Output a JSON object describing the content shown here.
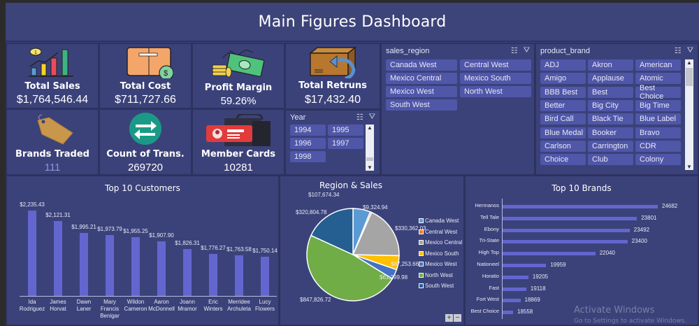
{
  "header": {
    "title": "Main Figures Dashboard"
  },
  "kpis": {
    "total_sales": {
      "label": "Total Sales",
      "value": "$1,764,546.44",
      "icon": "bar-chart-growth-icon"
    },
    "total_cost": {
      "label": "Total Cost",
      "value": "$711,727.66",
      "icon": "box-dollar-icon"
    },
    "profit_margin": {
      "label": "Profit Margin",
      "value": "59.26%",
      "icon": "money-coins-icon"
    },
    "total_returns": {
      "label": "Total Retruns",
      "value": "$17,432.40",
      "icon": "box-return-icon"
    },
    "brands_traded": {
      "label": "Brands Traded",
      "value": "111",
      "icon": "price-tag-icon"
    },
    "count_trans": {
      "label": "Count of Trans.",
      "value": "269720",
      "icon": "exchange-arrows-icon"
    },
    "member_cards": {
      "label": "Member Cards",
      "value": "10281",
      "icon": "id-card-icon"
    }
  },
  "year_slicer": {
    "title": "Year",
    "items": [
      "1994",
      "1995",
      "1996",
      "1997",
      "1998"
    ]
  },
  "region_slicer": {
    "title": "sales_region",
    "items": [
      "Canada West",
      "Central West",
      "Mexico Central",
      "Mexico South",
      "Mexico West",
      "North West",
      "South West"
    ]
  },
  "brand_slicer": {
    "title": "product_brand",
    "items": [
      "ADJ",
      "Akron",
      "American",
      "Amigo",
      "Applause",
      "Atomic",
      "BBB Best",
      "Best",
      "Best Choice",
      "Better",
      "Big City",
      "Big Time",
      "Bird Call",
      "Black Tie",
      "Blue Label",
      "Blue Medal",
      "Booker",
      "Bravo",
      "Carlson",
      "Carrington",
      "CDR",
      "Choice",
      "Club",
      "Colony"
    ]
  },
  "chart_data": [
    {
      "type": "bar",
      "title": "Top 10 Customers",
      "categories": [
        "Ida Rodriguez",
        "James Horvat",
        "Dawn Laner",
        "Mary Francis Benigar",
        "Wildon Cameron",
        "Aaron McDonnell",
        "Joann Mramor",
        "Eric Winters",
        "Merridee Archuleta",
        "Lucy Flowers"
      ],
      "category_lines": [
        [
          "Ida",
          "Rodriguez"
        ],
        [
          "James",
          "Horvat"
        ],
        [
          "Dawn",
          "Laner"
        ],
        [
          "Mary",
          "Francis",
          "Benigar"
        ],
        [
          "Wildon",
          "Cameron"
        ],
        [
          "Aaron",
          "McDonnell"
        ],
        [
          "Joann",
          "Mramor"
        ],
        [
          "Eric",
          "Winters"
        ],
        [
          "Merridee",
          "Archuleta"
        ],
        [
          "Lucy",
          "Flowers"
        ]
      ],
      "values": [
        2235.43,
        2121.31,
        1995.21,
        1973.79,
        1955.25,
        1907.9,
        1826.31,
        1776.27,
        1763.58,
        1750.14
      ],
      "labels": [
        "$2,235.43",
        "$2,121.31",
        "$1,995.21",
        "$1,973.79",
        "$1,955.25",
        "$1,907.90",
        "$1,826.31",
        "$1,776.27",
        "$1,763.58",
        "$1,750.14"
      ],
      "xlabel": "",
      "ylabel": "",
      "color": "#6466cf"
    },
    {
      "type": "pie",
      "title": "Region & Sales",
      "categories": [
        "Canada West",
        "Central West",
        "Mexico Central",
        "Mexico South",
        "Mexico West",
        "North West",
        "South West"
      ],
      "values": [
        107674.34,
        9324.94,
        330362.03,
        87253.66,
        61299.98,
        847826.72,
        320804.78
      ],
      "labels": [
        "$107,674.34",
        "$9,324.94",
        "$330,362.03",
        "$87,253.66",
        "$61,299.98",
        "$847,826.72",
        "$320,804.78"
      ],
      "colors": [
        "#5b9bd5",
        "#ed7d31",
        "#a5a5a5",
        "#ffc000",
        "#4472c4",
        "#70ad47",
        "#255e91"
      ],
      "legend_position": "right"
    },
    {
      "type": "bar",
      "orientation": "horizontal",
      "title": "Top 10 Brands",
      "categories": [
        "Hermanos",
        "Tell Tale",
        "Ebony",
        "Tri-State",
        "High Top",
        "Nationeel",
        "Horatio",
        "Fast",
        "Fort West",
        "Best Choice"
      ],
      "values": [
        24682,
        23801,
        23492,
        23400,
        22040,
        19959,
        19205,
        19118,
        18869,
        18558
      ],
      "color": "#6466cf"
    }
  ],
  "pie_controls": {
    "plus": "+",
    "minus": "−"
  },
  "watermark": {
    "line1": "Activate Windows",
    "line2": "Go to Settings to activate Windows."
  }
}
